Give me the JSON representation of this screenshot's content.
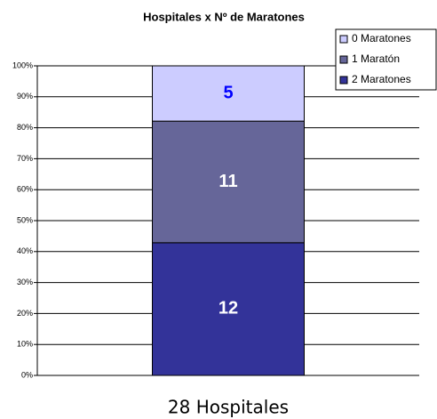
{
  "chart_data": {
    "type": "bar",
    "stacked": "percent",
    "title": "Hospitales x Nº de Maratones",
    "categories": [
      "28 Hospitales"
    ],
    "series": [
      {
        "name": "2 Maratones",
        "color": "#333399",
        "label_color": "#ffffff",
        "values": [
          12
        ]
      },
      {
        "name": "1 Maratón",
        "color": "#666699",
        "label_color": "#ffffff",
        "values": [
          11
        ]
      },
      {
        "name": "0 Maratones",
        "color": "#ccccff",
        "label_color": "#0000ff",
        "values": [
          5
        ]
      }
    ],
    "ylim": [
      0,
      100
    ],
    "yticks": [
      {
        "value": 0,
        "label": "0%"
      },
      {
        "value": 10,
        "label": "10%"
      },
      {
        "value": 20,
        "label": "20%"
      },
      {
        "value": 30,
        "label": "30%"
      },
      {
        "value": 40,
        "label": "40%"
      },
      {
        "value": 50,
        "label": "50%"
      },
      {
        "value": 60,
        "label": "60%"
      },
      {
        "value": 70,
        "label": "70%"
      },
      {
        "value": 80,
        "label": "80%"
      },
      {
        "value": 90,
        "label": "90%"
      },
      {
        "value": 100,
        "label": "100%"
      }
    ],
    "grid": true,
    "legend": "top-right"
  }
}
